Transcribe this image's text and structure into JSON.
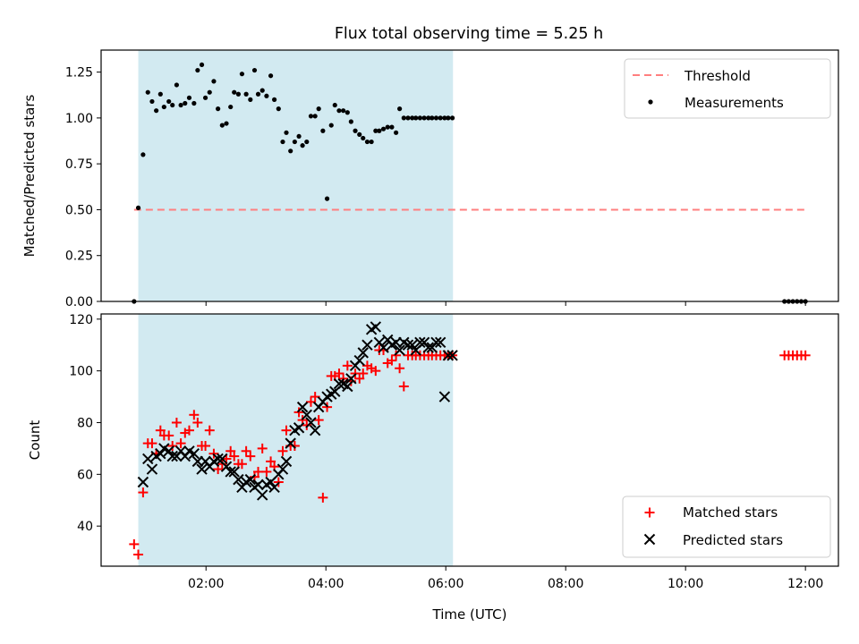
{
  "figure": {
    "title": "Flux total observing time = 5.25 h"
  },
  "chart_data": [
    {
      "type": "scatter",
      "panel": "top",
      "ylabel": "Matched/Predicted stars",
      "ylim": [
        0,
        1.37
      ],
      "xlim": [
        0.25,
        12.55
      ],
      "x_unit": "hours UTC",
      "yticks": [
        "0.00",
        "0.25",
        "0.50",
        "0.75",
        "1.00",
        "1.25"
      ],
      "yticks_values": [
        0,
        0.25,
        0.5,
        0.75,
        1.0,
        1.25
      ],
      "shaded_interval": [
        0.87,
        6.12
      ],
      "shaded_color": "#add8e6",
      "legend": {
        "placement": "upper right",
        "entries": [
          "Threshold",
          "Measurements"
        ]
      },
      "series": [
        {
          "name": "Threshold",
          "style": "dashed-line",
          "color": "#ff7f7f",
          "x": [
            0.8,
            12.0
          ],
          "y": [
            0.5,
            0.5
          ]
        },
        {
          "name": "Measurements",
          "style": "points",
          "color": "#000000",
          "x": [
            0.8,
            0.87,
            0.95,
            1.03,
            1.1,
            1.17,
            1.24,
            1.3,
            1.38,
            1.44,
            1.51,
            1.58,
            1.65,
            1.72,
            1.8,
            1.86,
            1.93,
            1.99,
            2.06,
            2.13,
            2.2,
            2.27,
            2.34,
            2.41,
            2.47,
            2.54,
            2.6,
            2.67,
            2.74,
            2.81,
            2.87,
            2.94,
            3.01,
            3.08,
            3.14,
            3.21,
            3.28,
            3.34,
            3.41,
            3.48,
            3.55,
            3.61,
            3.68,
            3.75,
            3.82,
            3.88,
            3.95,
            4.02,
            4.09,
            4.15,
            4.22,
            4.29,
            4.36,
            4.42,
            4.49,
            4.56,
            4.62,
            4.69,
            4.76,
            4.83,
            4.89,
            4.96,
            5.03,
            5.1,
            5.17,
            5.23,
            5.3,
            5.37,
            5.44,
            5.5,
            5.57,
            5.64,
            5.71,
            5.77,
            5.84,
            5.91,
            5.98,
            6.04,
            6.11,
            11.65,
            11.72,
            11.79,
            11.86,
            11.93,
            12.0
          ],
          "y": [
            0.0,
            0.51,
            0.8,
            1.14,
            1.09,
            1.04,
            1.13,
            1.06,
            1.09,
            1.07,
            1.18,
            1.07,
            1.08,
            1.11,
            1.08,
            1.26,
            1.29,
            1.11,
            1.14,
            1.2,
            1.05,
            0.96,
            0.97,
            1.06,
            1.14,
            1.13,
            1.24,
            1.13,
            1.1,
            1.26,
            1.13,
            1.15,
            1.12,
            1.23,
            1.1,
            1.05,
            0.87,
            0.92,
            0.82,
            0.87,
            0.9,
            0.85,
            0.87,
            1.01,
            1.01,
            1.05,
            0.93,
            0.56,
            0.96,
            1.07,
            1.04,
            1.04,
            1.03,
            0.98,
            0.93,
            0.91,
            0.89,
            0.87,
            0.87,
            0.93,
            0.93,
            0.94,
            0.95,
            0.95,
            0.92,
            1.05,
            1.0,
            1.0,
            1.0,
            1.0,
            1.0,
            1.0,
            1.0,
            1.0,
            1.0,
            1.0,
            1.0,
            1.0,
            1.0,
            0.0,
            0.0,
            0.0,
            0.0,
            0.0,
            0.0
          ]
        }
      ]
    },
    {
      "type": "scatter",
      "panel": "bottom",
      "xlabel": "Time (UTC)",
      "ylabel": "Count",
      "ylim": [
        24.5,
        122
      ],
      "xlim": [
        0.25,
        12.55
      ],
      "x_unit": "hours UTC",
      "xticks": [
        "02:00",
        "04:00",
        "06:00",
        "08:00",
        "10:00",
        "12:00"
      ],
      "xticks_values": [
        2,
        4,
        6,
        8,
        10,
        12
      ],
      "yticks": [
        "40",
        "60",
        "80",
        "100",
        "120"
      ],
      "yticks_values": [
        40,
        60,
        80,
        100,
        120
      ],
      "shaded_interval": [
        0.87,
        6.12
      ],
      "shaded_color": "#add8e6",
      "legend": {
        "placement": "lower right",
        "entries": [
          "Matched stars",
          "Predicted stars"
        ]
      },
      "series": [
        {
          "name": "Matched stars",
          "marker": "+",
          "color": "#ff0000",
          "x": [
            0.8,
            0.87,
            0.95,
            1.03,
            1.1,
            1.17,
            1.24,
            1.3,
            1.38,
            1.44,
            1.51,
            1.58,
            1.65,
            1.72,
            1.8,
            1.86,
            1.93,
            1.99,
            2.06,
            2.13,
            2.2,
            2.27,
            2.34,
            2.41,
            2.47,
            2.54,
            2.6,
            2.67,
            2.74,
            2.81,
            2.87,
            2.94,
            3.01,
            3.08,
            3.14,
            3.21,
            3.28,
            3.34,
            3.41,
            3.48,
            3.55,
            3.61,
            3.68,
            3.75,
            3.82,
            3.88,
            3.95,
            4.02,
            4.09,
            4.15,
            4.22,
            4.29,
            4.36,
            4.42,
            4.49,
            4.56,
            4.62,
            4.69,
            4.76,
            4.83,
            4.89,
            4.96,
            5.03,
            5.1,
            5.17,
            5.23,
            5.3,
            5.37,
            5.44,
            5.5,
            5.57,
            5.64,
            5.71,
            5.77,
            5.84,
            5.91,
            5.98,
            6.04,
            6.11,
            11.65,
            11.72,
            11.79,
            11.86,
            11.93,
            12.0
          ],
          "y": [
            33,
            29,
            53,
            72,
            72,
            68,
            77,
            75,
            75,
            71,
            80,
            72,
            76,
            77,
            83,
            80,
            71,
            71,
            77,
            68,
            62,
            64,
            66,
            69,
            67,
            64,
            64,
            69,
            67,
            59,
            61,
            70,
            61,
            65,
            63,
            57,
            69,
            77,
            71,
            71,
            84,
            81,
            79,
            88,
            90,
            81,
            51,
            86,
            98,
            98,
            99,
            97,
            102,
            96,
            99,
            97,
            99,
            102,
            101,
            100,
            108,
            108,
            103,
            104,
            106,
            101,
            94,
            106,
            106,
            106,
            106,
            106,
            106,
            106,
            106,
            106,
            106,
            106,
            106,
            106,
            106,
            106,
            106,
            106,
            106
          ],
          "note_values_visible": "approximate"
        },
        {
          "name": "Predicted stars",
          "marker": "x",
          "color": "#000000",
          "x": [
            0.95,
            1.03,
            1.1,
            1.17,
            1.24,
            1.3,
            1.38,
            1.44,
            1.51,
            1.58,
            1.65,
            1.72,
            1.8,
            1.86,
            1.93,
            1.99,
            2.06,
            2.13,
            2.2,
            2.27,
            2.34,
            2.41,
            2.47,
            2.54,
            2.6,
            2.67,
            2.74,
            2.81,
            2.87,
            2.94,
            3.01,
            3.08,
            3.14,
            3.21,
            3.28,
            3.34,
            3.41,
            3.48,
            3.55,
            3.61,
            3.68,
            3.75,
            3.82,
            3.88,
            3.95,
            4.02,
            4.09,
            4.15,
            4.22,
            4.29,
            4.36,
            4.42,
            4.49,
            4.56,
            4.62,
            4.69,
            4.76,
            4.83,
            4.89,
            4.96,
            5.03,
            5.1,
            5.17,
            5.23,
            5.3,
            5.37,
            5.44,
            5.5,
            5.57,
            5.64,
            5.71,
            5.77,
            5.84,
            5.91,
            5.98,
            6.04,
            6.11
          ],
          "y": [
            57,
            66,
            62,
            67,
            68,
            70,
            69,
            67,
            67,
            69,
            67,
            69,
            68,
            65,
            62,
            65,
            63,
            65,
            66,
            66,
            63,
            61,
            61,
            58,
            55,
            57,
            58,
            55,
            56,
            52,
            56,
            57,
            55,
            60,
            62,
            65,
            72,
            77,
            78,
            86,
            83,
            80,
            77,
            86,
            88,
            90,
            91,
            92,
            95,
            95,
            94,
            97,
            102,
            104,
            107,
            110,
            116,
            117,
            111,
            109,
            112,
            110,
            111,
            108,
            111,
            110,
            110,
            108,
            111,
            111,
            109,
            109,
            111,
            111,
            90,
            106,
            106
          ],
          "note_values_visible": "approximate"
        }
      ]
    }
  ]
}
